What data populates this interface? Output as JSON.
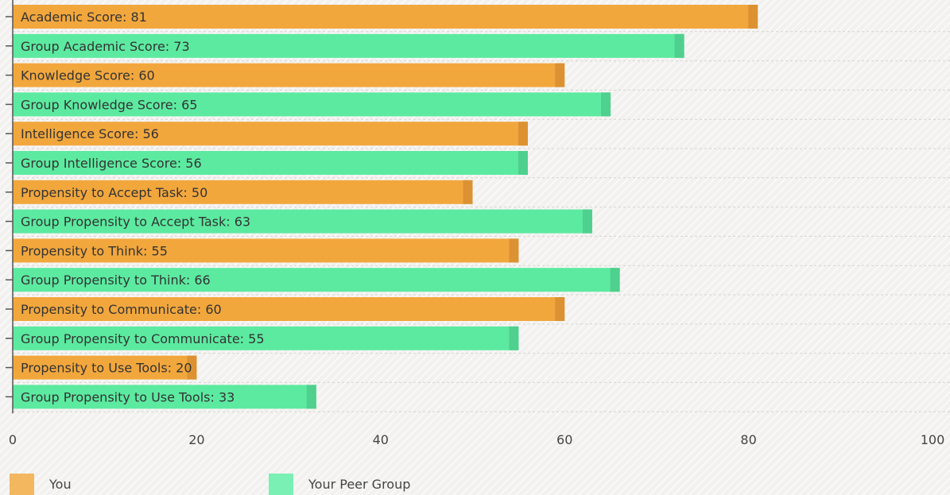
{
  "chart_data": {
    "type": "bar",
    "orientation": "horizontal",
    "categories": [
      "Academic Score",
      "Group Academic Score",
      "Knowledge Score",
      "Group Knowledge Score",
      "Intelligence Score",
      "Group Intelligence Score",
      "Propensity to Accept Task",
      "Group Propensity to Accept Task",
      "Propensity to Think",
      "Group Propensity to Think",
      "Propensity to Communicate",
      "Group Propensity to Communicate",
      "Propensity to Use Tools",
      "Group Propensity to Use Tools"
    ],
    "values": [
      81,
      73,
      60,
      65,
      56,
      56,
      50,
      63,
      55,
      66,
      60,
      55,
      20,
      33
    ],
    "bar_labels": [
      "Academic Score: 81",
      "Group Academic Score: 73",
      "Knowledge Score: 60",
      "Group Knowledge Score: 65",
      "Intelligence Score: 56",
      "Group Intelligence Score: 56",
      "Propensity to Accept Task: 50",
      "Group Propensity to Accept Task: 63",
      "Propensity to Think: 55",
      "Group Propensity to Think: 66",
      "Propensity to Communicate: 60",
      "Group Propensity to Communicate: 55",
      "Propensity to Use Tools: 20",
      "Group Propensity to Use Tools: 33"
    ],
    "bar_series": [
      "You",
      "Your Peer Group",
      "You",
      "Your Peer Group",
      "You",
      "Your Peer Group",
      "You",
      "Your Peer Group",
      "You",
      "Your Peer Group",
      "You",
      "Your Peer Group",
      "You",
      "Your Peer Group"
    ],
    "series": [
      {
        "name": "You",
        "color": "#f2a73d",
        "shade": "#dc9232"
      },
      {
        "name": "Your Peer Group",
        "color": "#5ceaa0",
        "shade": "#4fd08e"
      }
    ],
    "x_ticks": [
      "0",
      "20",
      "40",
      "60",
      "80",
      "100"
    ],
    "xlim": [
      0,
      100
    ],
    "xlabel": "",
    "ylabel": "",
    "title": "",
    "grid": true,
    "legend_position": "bottom-left"
  },
  "legend": {
    "you": "You",
    "peer": "Your Peer Group"
  }
}
